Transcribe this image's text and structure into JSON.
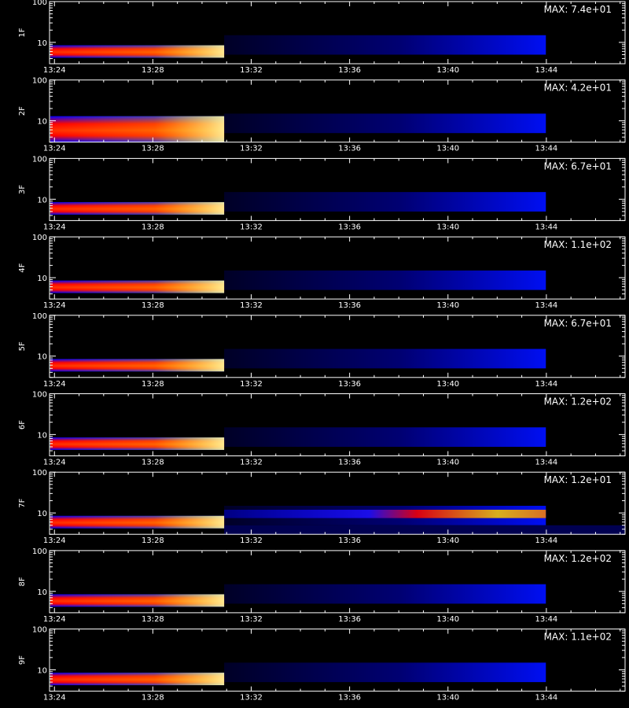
{
  "chart_data": {
    "type": "heatmap",
    "y_scale": "log",
    "ylim": [
      3,
      100
    ],
    "y_ticks": [
      "10",
      "100"
    ],
    "x_ticks": [
      "13:24",
      "13:28",
      "13:32",
      "13:36",
      "13:40",
      "13:44"
    ],
    "x_tick_minutes": [
      0,
      4,
      8,
      12,
      16,
      20
    ],
    "x_range_minutes": [
      -0.2,
      23.2
    ],
    "xlabel": "",
    "panels": [
      {
        "label": "1F",
        "max_text": "MAX: 7.4e+01",
        "max": 74
      },
      {
        "label": "2F",
        "max_text": "MAX: 4.2e+01",
        "max": 42
      },
      {
        "label": "3F",
        "max_text": "MAX: 6.7e+01",
        "max": 67
      },
      {
        "label": "4F",
        "max_text": "MAX: 1.1e+02",
        "max": 110
      },
      {
        "label": "5F",
        "max_text": "MAX: 6.7e+01",
        "max": 67
      },
      {
        "label": "6F",
        "max_text": "MAX: 1.2e+02",
        "max": 120
      },
      {
        "label": "7F",
        "max_text": "MAX: 1.2e+01",
        "max": 12
      },
      {
        "label": "8F",
        "max_text": "MAX: 1.2e+02",
        "max": 120
      },
      {
        "label": "9F",
        "max_text": "MAX: 1.1e+02",
        "max": 110
      }
    ],
    "colormap": [
      "#000000",
      "#0000ff",
      "#ff0000",
      "#ffff00",
      "#ffffff"
    ]
  }
}
